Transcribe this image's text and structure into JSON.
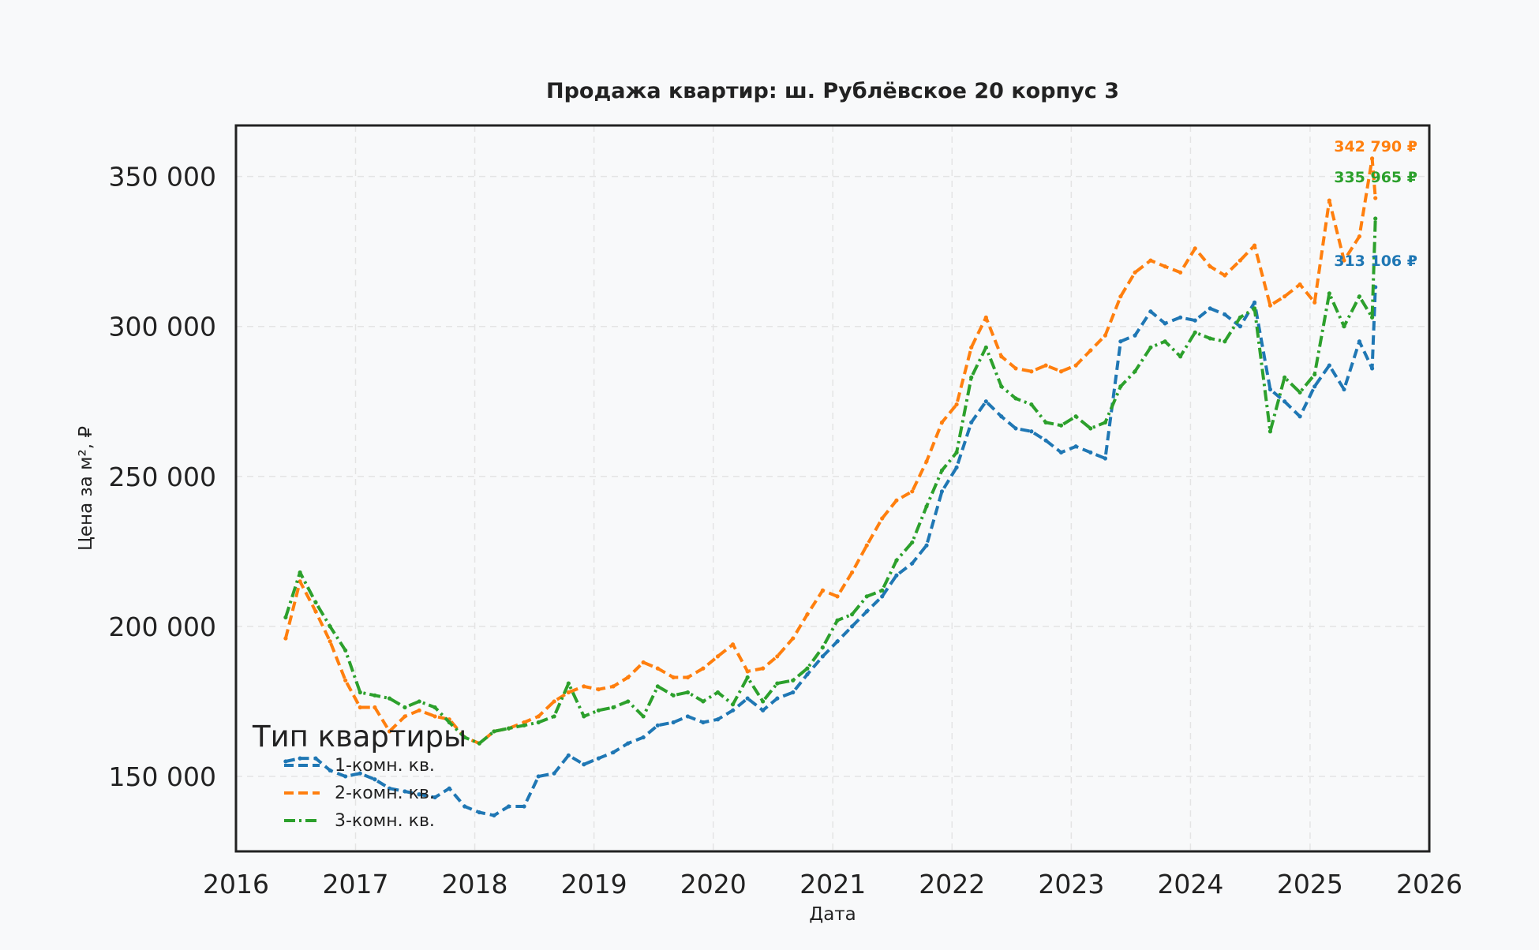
{
  "chart_data": {
    "type": "line",
    "title": "Продажа квартир: ш. Рублёвское 20 корпус 3",
    "xlabel": "Дата",
    "ylabel": "Цена за м², ₽",
    "xlim": [
      "2016-01-01",
      "2026-01-01"
    ],
    "ylim": [
      125000,
      367000
    ],
    "x_ticks": [
      "2016",
      "2017",
      "2018",
      "2019",
      "2020",
      "2021",
      "2022",
      "2023",
      "2024",
      "2025",
      "2026"
    ],
    "y_ticks": [
      150000,
      200000,
      250000,
      300000,
      350000
    ],
    "y_tick_labels": [
      "150 000",
      "200 000",
      "250 000",
      "300 000",
      "350 000"
    ],
    "grid": true,
    "legend": {
      "title": "Тип квартиры",
      "placement": "lower-left"
    },
    "series": [
      {
        "name": "1-комн. кв.",
        "color": "#1f77b4",
        "style": "dashed",
        "end_label": "313 106 ₽",
        "points": [
          [
            "2016-06-01",
            155000
          ],
          [
            "2016-07-15",
            156000
          ],
          [
            "2016-09-01",
            156000
          ],
          [
            "2016-10-15",
            152000
          ],
          [
            "2016-12-01",
            150000
          ],
          [
            "2017-01-15",
            151000
          ],
          [
            "2017-03-01",
            149000
          ],
          [
            "2017-04-15",
            146000
          ],
          [
            "2017-06-01",
            145000
          ],
          [
            "2017-07-15",
            144000
          ],
          [
            "2017-09-01",
            143000
          ],
          [
            "2017-10-15",
            146000
          ],
          [
            "2017-12-01",
            140000
          ],
          [
            "2018-01-15",
            138000
          ],
          [
            "2018-03-01",
            137000
          ],
          [
            "2018-04-15",
            140000
          ],
          [
            "2018-06-01",
            140000
          ],
          [
            "2018-07-15",
            150000
          ],
          [
            "2018-09-01",
            151000
          ],
          [
            "2018-10-15",
            157000
          ],
          [
            "2018-12-01",
            154000
          ],
          [
            "2019-01-15",
            156000
          ],
          [
            "2019-03-01",
            158000
          ],
          [
            "2019-04-15",
            161000
          ],
          [
            "2019-06-01",
            163000
          ],
          [
            "2019-07-15",
            167000
          ],
          [
            "2019-09-01",
            168000
          ],
          [
            "2019-10-15",
            170000
          ],
          [
            "2019-12-01",
            168000
          ],
          [
            "2020-01-15",
            169000
          ],
          [
            "2020-03-01",
            172000
          ],
          [
            "2020-04-15",
            176000
          ],
          [
            "2020-06-01",
            172000
          ],
          [
            "2020-07-15",
            176000
          ],
          [
            "2020-09-01",
            178000
          ],
          [
            "2020-10-15",
            184000
          ],
          [
            "2020-12-01",
            190000
          ],
          [
            "2021-01-15",
            195000
          ],
          [
            "2021-03-01",
            200000
          ],
          [
            "2021-04-15",
            205000
          ],
          [
            "2021-06-01",
            210000
          ],
          [
            "2021-07-15",
            217000
          ],
          [
            "2021-09-01",
            221000
          ],
          [
            "2021-10-15",
            227000
          ],
          [
            "2021-12-01",
            245000
          ],
          [
            "2022-01-15",
            253000
          ],
          [
            "2022-03-01",
            268000
          ],
          [
            "2022-04-15",
            275000
          ],
          [
            "2022-06-01",
            270000
          ],
          [
            "2022-07-15",
            266000
          ],
          [
            "2022-09-01",
            265000
          ],
          [
            "2022-10-15",
            262000
          ],
          [
            "2022-12-01",
            258000
          ],
          [
            "2023-01-15",
            260000
          ],
          [
            "2023-03-01",
            258000
          ],
          [
            "2023-04-15",
            256000
          ],
          [
            "2023-06-01",
            295000
          ],
          [
            "2023-07-15",
            297000
          ],
          [
            "2023-09-01",
            305000
          ],
          [
            "2023-10-15",
            301000
          ],
          [
            "2023-12-01",
            303000
          ],
          [
            "2024-01-15",
            302000
          ],
          [
            "2024-03-01",
            306000
          ],
          [
            "2024-04-15",
            304000
          ],
          [
            "2024-06-01",
            300000
          ],
          [
            "2024-07-15",
            308000
          ],
          [
            "2024-09-01",
            279000
          ],
          [
            "2024-10-15",
            275000
          ],
          [
            "2024-12-01",
            270000
          ],
          [
            "2025-01-15",
            280000
          ],
          [
            "2025-03-01",
            287000
          ],
          [
            "2025-04-15",
            279000
          ],
          [
            "2025-06-01",
            295000
          ],
          [
            "2025-07-10",
            286000
          ],
          [
            "2025-07-20",
            313106
          ]
        ]
      },
      {
        "name": "2-комн. кв.",
        "color": "#ff7f0e",
        "style": "dashed",
        "end_label": "342 790 ₽",
        "points": [
          [
            "2016-06-01",
            196000
          ],
          [
            "2016-07-15",
            215000
          ],
          [
            "2016-09-01",
            205000
          ],
          [
            "2016-10-15",
            195000
          ],
          [
            "2016-12-01",
            182000
          ],
          [
            "2017-01-15",
            173000
          ],
          [
            "2017-03-01",
            173000
          ],
          [
            "2017-04-15",
            165000
          ],
          [
            "2017-06-01",
            170000
          ],
          [
            "2017-07-15",
            172000
          ],
          [
            "2017-09-01",
            170000
          ],
          [
            "2017-10-15",
            169000
          ],
          [
            "2017-12-01",
            163000
          ],
          [
            "2018-01-15",
            161000
          ],
          [
            "2018-03-01",
            165000
          ],
          [
            "2018-04-15",
            166000
          ],
          [
            "2018-06-01",
            168000
          ],
          [
            "2018-07-15",
            170000
          ],
          [
            "2018-09-01",
            175000
          ],
          [
            "2018-10-15",
            178000
          ],
          [
            "2018-12-01",
            180000
          ],
          [
            "2019-01-15",
            179000
          ],
          [
            "2019-03-01",
            180000
          ],
          [
            "2019-04-15",
            183000
          ],
          [
            "2019-06-01",
            188000
          ],
          [
            "2019-07-15",
            186000
          ],
          [
            "2019-09-01",
            183000
          ],
          [
            "2019-10-15",
            183000
          ],
          [
            "2019-12-01",
            186000
          ],
          [
            "2020-01-15",
            190000
          ],
          [
            "2020-03-01",
            194000
          ],
          [
            "2020-04-15",
            185000
          ],
          [
            "2020-06-01",
            186000
          ],
          [
            "2020-07-15",
            190000
          ],
          [
            "2020-09-01",
            196000
          ],
          [
            "2020-10-15",
            204000
          ],
          [
            "2020-12-01",
            212000
          ],
          [
            "2021-01-15",
            210000
          ],
          [
            "2021-03-01",
            218000
          ],
          [
            "2021-04-15",
            227000
          ],
          [
            "2021-06-01",
            236000
          ],
          [
            "2021-07-15",
            242000
          ],
          [
            "2021-09-01",
            245000
          ],
          [
            "2021-10-15",
            255000
          ],
          [
            "2021-12-01",
            268000
          ],
          [
            "2022-01-15",
            274000
          ],
          [
            "2022-03-01",
            293000
          ],
          [
            "2022-04-15",
            303000
          ],
          [
            "2022-06-01",
            290000
          ],
          [
            "2022-07-15",
            286000
          ],
          [
            "2022-09-01",
            285000
          ],
          [
            "2022-10-15",
            287000
          ],
          [
            "2022-12-01",
            285000
          ],
          [
            "2023-01-15",
            287000
          ],
          [
            "2023-03-01",
            292000
          ],
          [
            "2023-04-15",
            297000
          ],
          [
            "2023-06-01",
            310000
          ],
          [
            "2023-07-15",
            318000
          ],
          [
            "2023-09-01",
            322000
          ],
          [
            "2023-10-15",
            320000
          ],
          [
            "2023-12-01",
            318000
          ],
          [
            "2024-01-15",
            326000
          ],
          [
            "2024-03-01",
            320000
          ],
          [
            "2024-04-15",
            317000
          ],
          [
            "2024-06-01",
            322000
          ],
          [
            "2024-07-15",
            327000
          ],
          [
            "2024-09-01",
            307000
          ],
          [
            "2024-10-15",
            310000
          ],
          [
            "2024-12-01",
            314000
          ],
          [
            "2025-01-15",
            308000
          ],
          [
            "2025-03-01",
            342000
          ],
          [
            "2025-04-15",
            322000
          ],
          [
            "2025-06-01",
            330000
          ],
          [
            "2025-07-10",
            356000
          ],
          [
            "2025-07-20",
            342790
          ]
        ]
      },
      {
        "name": "3-комн. кв.",
        "color": "#2ca02c",
        "style": "dashdot",
        "end_label": "335 965 ₽",
        "points": [
          [
            "2016-06-01",
            203000
          ],
          [
            "2016-07-15",
            218000
          ],
          [
            "2016-09-01",
            208000
          ],
          [
            "2016-10-15",
            200000
          ],
          [
            "2016-12-01",
            192000
          ],
          [
            "2017-01-15",
            178000
          ],
          [
            "2017-03-01",
            177000
          ],
          [
            "2017-04-15",
            176000
          ],
          [
            "2017-06-01",
            173000
          ],
          [
            "2017-07-15",
            175000
          ],
          [
            "2017-09-01",
            173000
          ],
          [
            "2017-10-15",
            168000
          ],
          [
            "2017-12-01",
            163000
          ],
          [
            "2018-01-15",
            161000
          ],
          [
            "2018-03-01",
            165000
          ],
          [
            "2018-04-15",
            166000
          ],
          [
            "2018-06-01",
            167000
          ],
          [
            "2018-07-15",
            168000
          ],
          [
            "2018-09-01",
            170000
          ],
          [
            "2018-10-15",
            181000
          ],
          [
            "2018-12-01",
            170000
          ],
          [
            "2019-01-15",
            172000
          ],
          [
            "2019-03-01",
            173000
          ],
          [
            "2019-04-15",
            175000
          ],
          [
            "2019-06-01",
            170000
          ],
          [
            "2019-07-15",
            180000
          ],
          [
            "2019-09-01",
            177000
          ],
          [
            "2019-10-15",
            178000
          ],
          [
            "2019-12-01",
            175000
          ],
          [
            "2020-01-15",
            178000
          ],
          [
            "2020-03-01",
            174000
          ],
          [
            "2020-04-15",
            183000
          ],
          [
            "2020-06-01",
            175000
          ],
          [
            "2020-07-15",
            181000
          ],
          [
            "2020-09-01",
            182000
          ],
          [
            "2020-10-15",
            186000
          ],
          [
            "2020-12-01",
            193000
          ],
          [
            "2021-01-15",
            202000
          ],
          [
            "2021-03-01",
            204000
          ],
          [
            "2021-04-15",
            210000
          ],
          [
            "2021-06-01",
            212000
          ],
          [
            "2021-07-15",
            222000
          ],
          [
            "2021-09-01",
            228000
          ],
          [
            "2021-10-15",
            240000
          ],
          [
            "2021-12-01",
            252000
          ],
          [
            "2022-01-15",
            258000
          ],
          [
            "2022-03-01",
            283000
          ],
          [
            "2022-04-15",
            293000
          ],
          [
            "2022-06-01",
            280000
          ],
          [
            "2022-07-15",
            276000
          ],
          [
            "2022-09-01",
            274000
          ],
          [
            "2022-10-15",
            268000
          ],
          [
            "2022-12-01",
            267000
          ],
          [
            "2023-01-15",
            270000
          ],
          [
            "2023-03-01",
            266000
          ],
          [
            "2023-04-15",
            268000
          ],
          [
            "2023-06-01",
            280000
          ],
          [
            "2023-07-15",
            285000
          ],
          [
            "2023-09-01",
            293000
          ],
          [
            "2023-10-15",
            295000
          ],
          [
            "2023-12-01",
            290000
          ],
          [
            "2024-01-15",
            298000
          ],
          [
            "2024-03-01",
            296000
          ],
          [
            "2024-04-15",
            295000
          ],
          [
            "2024-06-01",
            303000
          ],
          [
            "2024-07-15",
            306000
          ],
          [
            "2024-09-01",
            265000
          ],
          [
            "2024-10-15",
            283000
          ],
          [
            "2024-12-01",
            278000
          ],
          [
            "2025-01-15",
            284000
          ],
          [
            "2025-03-01",
            311000
          ],
          [
            "2025-04-15",
            300000
          ],
          [
            "2025-06-01",
            310000
          ],
          [
            "2025-07-10",
            303000
          ],
          [
            "2025-07-20",
            335965
          ]
        ]
      }
    ]
  }
}
